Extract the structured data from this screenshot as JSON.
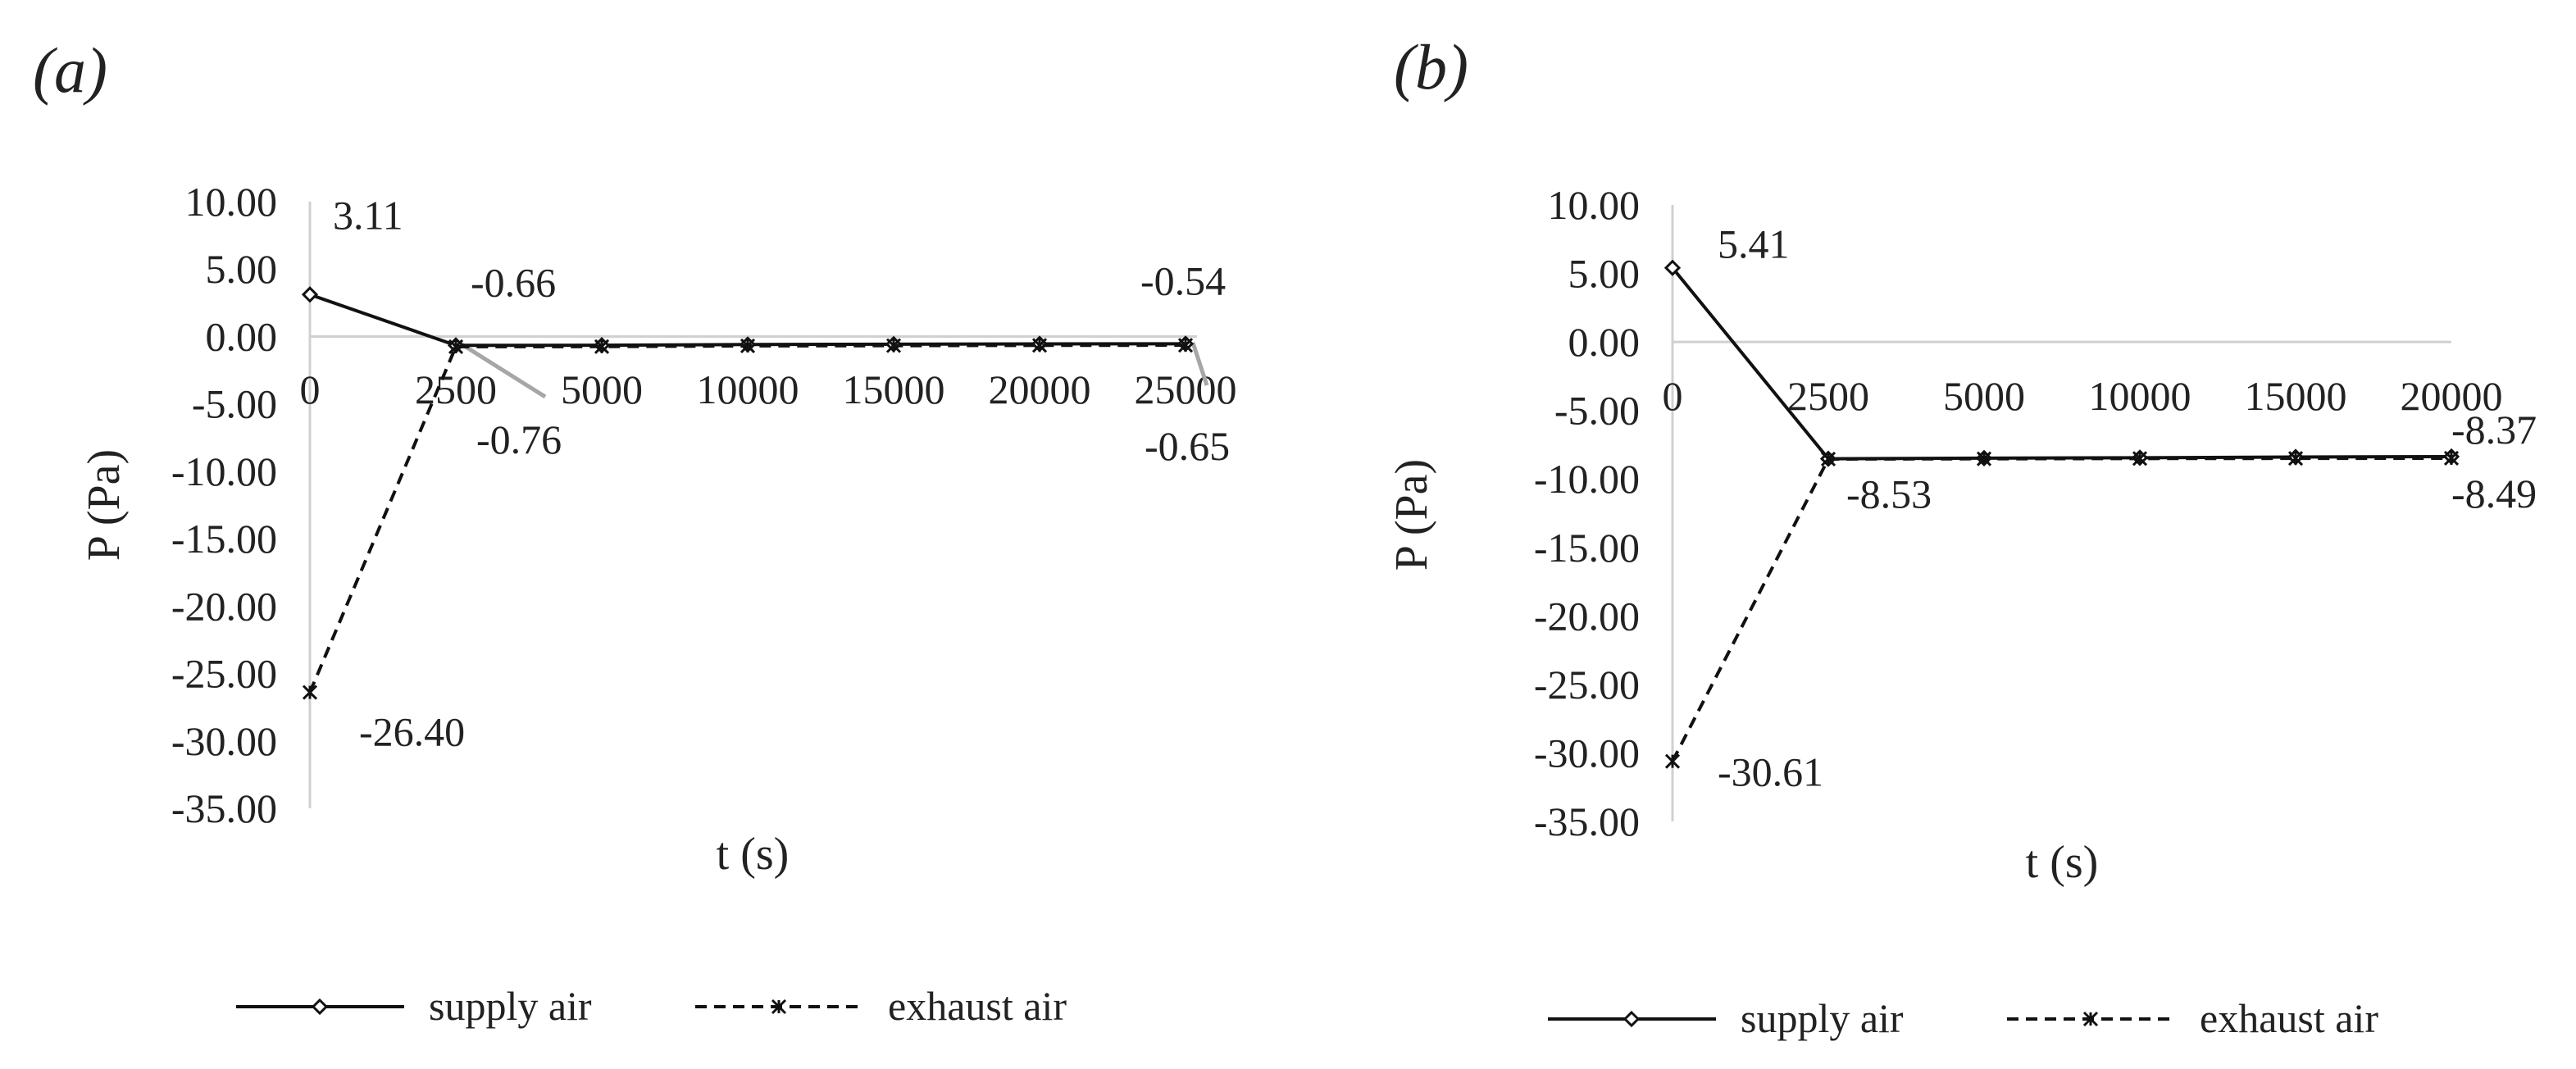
{
  "chart_data": [
    {
      "type": "line",
      "panel": "(a)",
      "xlabel": "t (s)",
      "ylabel": "P (Pa)",
      "x": [
        0,
        2500,
        5000,
        10000,
        15000,
        20000,
        25000
      ],
      "x_tick_labels": [
        "0",
        "2500",
        "5000",
        "10000",
        "15000",
        "20000",
        "25000"
      ],
      "y_tick_labels": [
        "10.00",
        "5.00",
        "0.00",
        "-5.00",
        "-10.00",
        "-15.00",
        "-20.00",
        "-25.00",
        "-30.00",
        "-35.00"
      ],
      "ylim": [
        -35,
        10
      ],
      "grid": false,
      "legend_position": "bottom",
      "series": [
        {
          "name": "supply air",
          "values": [
            3.11,
            -0.66,
            -0.65,
            -0.6,
            -0.57,
            -0.55,
            -0.54
          ],
          "line": "solid",
          "marker": "diamond"
        },
        {
          "name": "exhaust air",
          "values": [
            -26.4,
            -0.76,
            -0.75,
            -0.7,
            -0.68,
            -0.66,
            -0.65
          ],
          "line": "dashed",
          "marker": "star"
        }
      ],
      "data_labels": [
        {
          "text": "3.11",
          "series": 0,
          "index": 0
        },
        {
          "text": "-0.66",
          "series": 0,
          "index": 1
        },
        {
          "text": "-0.54",
          "series": 0,
          "index": 6
        },
        {
          "text": "-26.40",
          "series": 1,
          "index": 0
        },
        {
          "text": "-0.76",
          "series": 1,
          "index": 1
        },
        {
          "text": "-0.65",
          "series": 1,
          "index": 6
        }
      ]
    },
    {
      "type": "line",
      "panel": "(b)",
      "xlabel": "t  (s)",
      "ylabel": "P  (Pa)",
      "x": [
        0,
        2500,
        5000,
        10000,
        15000,
        20000
      ],
      "x_tick_labels": [
        "0",
        "2500",
        "5000",
        "10000",
        "15000",
        "20000"
      ],
      "y_tick_labels": [
        "10.00",
        "5.00",
        "0.00",
        "-5.00",
        "-10.00",
        "-15.00",
        "-20.00",
        "-25.00",
        "-30.00",
        "-35.00"
      ],
      "ylim": [
        -35,
        10
      ],
      "grid": false,
      "legend_position": "bottom",
      "series": [
        {
          "name": "supply air",
          "values": [
            5.41,
            -8.53,
            -8.48,
            -8.45,
            -8.4,
            -8.37
          ],
          "line": "solid",
          "marker": "diamond"
        },
        {
          "name": "exhaust air",
          "values": [
            -30.61,
            -8.55,
            -8.53,
            -8.51,
            -8.5,
            -8.49
          ],
          "line": "dashed",
          "marker": "star"
        }
      ],
      "data_labels": [
        {
          "text": "5.41",
          "series": 0,
          "index": 0
        },
        {
          "text": "-8.53",
          "series": 0,
          "index": 1
        },
        {
          "text": "-8.37",
          "series": 0,
          "index": 5
        },
        {
          "text": "-30.61",
          "series": 1,
          "index": 0
        },
        {
          "text": "-8.49",
          "series": 1,
          "index": 5
        }
      ]
    }
  ],
  "colors": {
    "axis": "#d0d0d0",
    "line": "#111111",
    "leader": "#a6a6a6",
    "text": "#222222"
  }
}
